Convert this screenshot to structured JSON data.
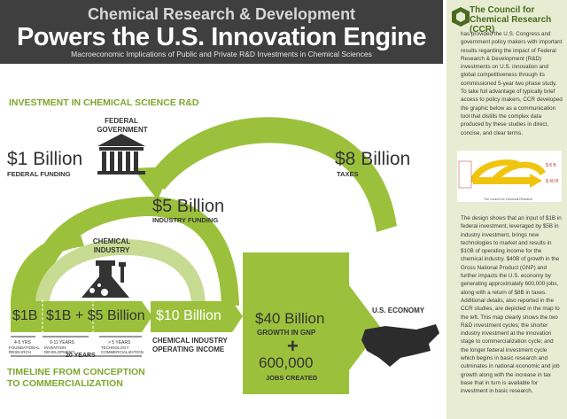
{
  "header": {
    "title_top": "Chemical Research & Development",
    "title_main": "Powers the U.S. Innovation Engine",
    "subtitle": "Macroeconomic Implications of Public and Private R&D Investments in Chemical Sciences"
  },
  "section_title": "INVESTMENT IN CHEMICAL SCIENCE R&D",
  "federal": {
    "label_line1": "FEDERAL",
    "label_line2": "GOVERNMENT",
    "amount": "$1 Billion",
    "amount_label": "FEDERAL FUNDING"
  },
  "taxes": {
    "amount": "$8 Billion",
    "label": "TAXES"
  },
  "industry": {
    "amount": "$5 Billion",
    "amount_label": "INDUSTRY FUNDING",
    "label_line1": "CHEMICAL",
    "label_line2": "INDUSTRY"
  },
  "flow": {
    "box1": "$1B",
    "box2": "$1B + $5 Billion",
    "box3": "$10 Billion",
    "box3_label1": "CHEMICAL INDUSTRY",
    "box3_label2": "OPERATING INCOME",
    "box4_amount": "$40 Billion",
    "box4_label": "GROWTH IN GNP",
    "plus": "+",
    "jobs_amount": "600,000",
    "jobs_label": "JOBS CREATED",
    "economy_label": "U.S. ECONOMY"
  },
  "timeline": {
    "stage1_years": "4-5 YRS",
    "stage1_l1": "FOUNDATIONAL",
    "stage1_l2": "RESEARCH",
    "stage2_years": "9-11 YEARS",
    "stage2_l1": "INVENTION",
    "stage2_l2": "DEVELOPMENT",
    "stage3_years": "> 5 YEARS",
    "stage3_l1": "TECHNOLOGY",
    "stage3_l2": "COMMERCIALIZATION",
    "total": "20 YEARS",
    "title_l1": "TIMELINE FROM CONCEPTION",
    "title_l2": "TO COMMERCIALIZATION"
  },
  "sidebar": {
    "org_name": "The Council for Chemical Research (CCR)",
    "para1": "has provided the U.S. Congress and government policy makers with important results regarding the impact of Federal Research & Development (R&D) investments on U.S. innovation and global competitiveness through its commissioned 5-year two phase study. To take full advantage of typically brief access to policy makers, CCR developed the graphic below as a communication tool that distills the complex data produced by these studies in direct, concise, and clear terms.",
    "para2": "The design shows that an input of $1B in federal investment, leveraged by $5B in industry investment, brings new technologies to market and results in $10B of operating income for the chemical industry. $40B of growth in the Gross National Product (GNP) and further impacts the U.S. economy by generating approximately 600,000 jobs, along with a return of $8B in taxes. Additional details, also reported in the CCR studies, are depicted in the map to the left. This map clearly shows the two R&D investment cycles; the shorter industry investment at the innovation stage to commercialization cycle; and the longer federal investment cycle which begins in basic research and culminates in national economic and job growth along with the increase in tax base that in turn is available for investment in basic research.",
    "thumb_caption": "The Council for Chemical Research"
  },
  "colors": {
    "green": "#9bc13c",
    "dark_green": "#4a6b1e",
    "header_bg": "#3f3f3f",
    "sidebar_bg": "#e7ecd2",
    "yellow": "#f1c40f"
  }
}
